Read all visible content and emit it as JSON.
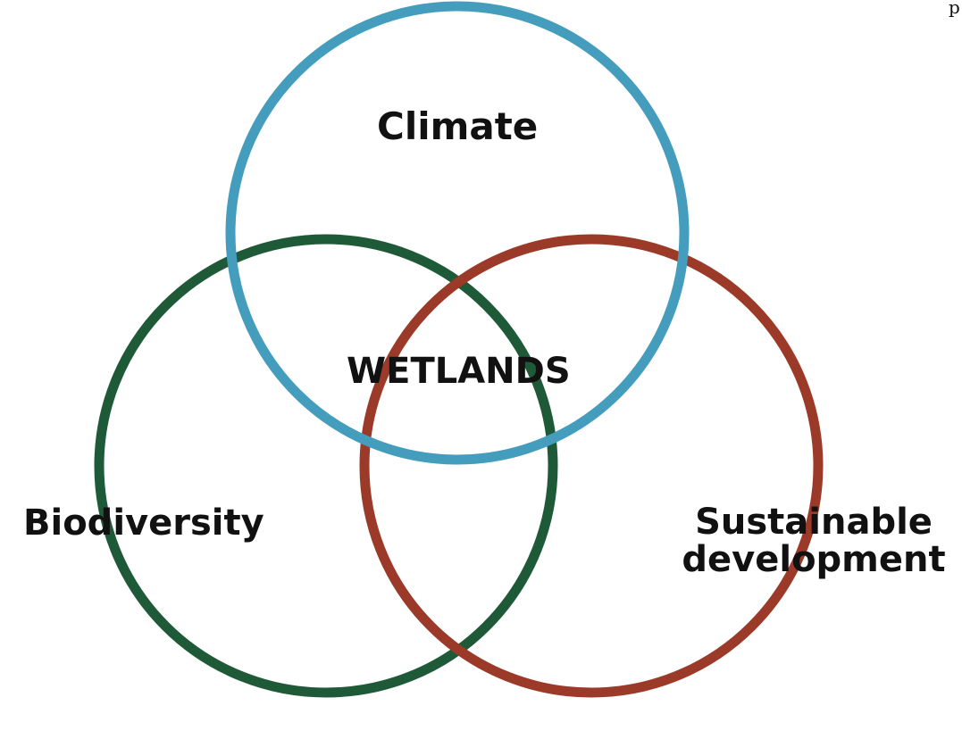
{
  "diagram": {
    "center_label": "WETLANDS",
    "circles": [
      {
        "id": "climate",
        "label": "Climate",
        "color": "#449dbd"
      },
      {
        "id": "biodiversity",
        "label": "Biodiversity",
        "color": "#1f5a38"
      },
      {
        "id": "sustainable",
        "label_lines": [
          "Sustainable",
          "development"
        ],
        "color": "#9b3a28"
      }
    ],
    "corner_fragment": "p"
  }
}
